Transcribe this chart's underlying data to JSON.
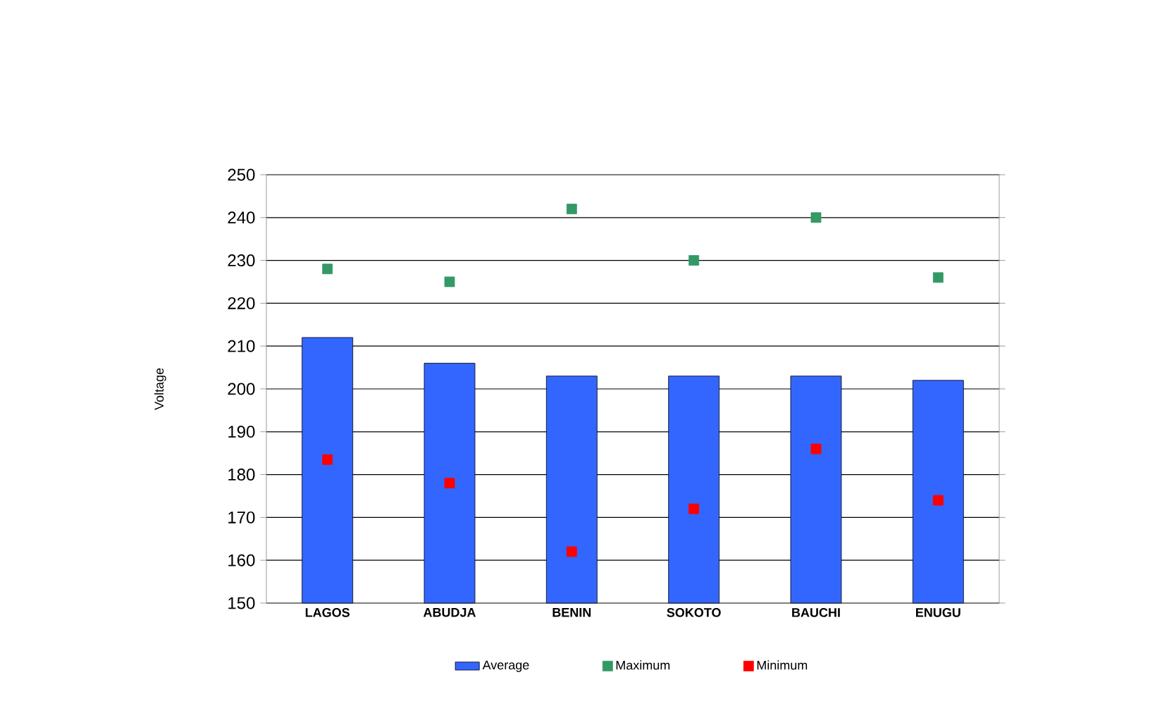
{
  "chart_data": {
    "type": "bar",
    "ylabel": "Voltage",
    "categories": [
      "LAGOS",
      "ABUDJA",
      "BENIN",
      "SOKOTO",
      "BAUCHI",
      "ENUGU"
    ],
    "series": [
      {
        "name": "Average",
        "type": "bar",
        "color": "#3366ff",
        "values": [
          212,
          206,
          203,
          203,
          203,
          202
        ]
      },
      {
        "name": "Maximum",
        "type": "scatter",
        "color": "#339966",
        "values": [
          228,
          225,
          242,
          230,
          240,
          226
        ]
      },
      {
        "name": "Minimum",
        "type": "scatter",
        "color": "#ff0000",
        "values": [
          183.5,
          178,
          162,
          172,
          186,
          174
        ]
      }
    ],
    "ylim": [
      150,
      250
    ],
    "yticks": [
      150,
      160,
      170,
      180,
      190,
      200,
      210,
      220,
      230,
      240,
      250
    ],
    "grid": "y",
    "legend": "bottom",
    "marker": "square"
  }
}
